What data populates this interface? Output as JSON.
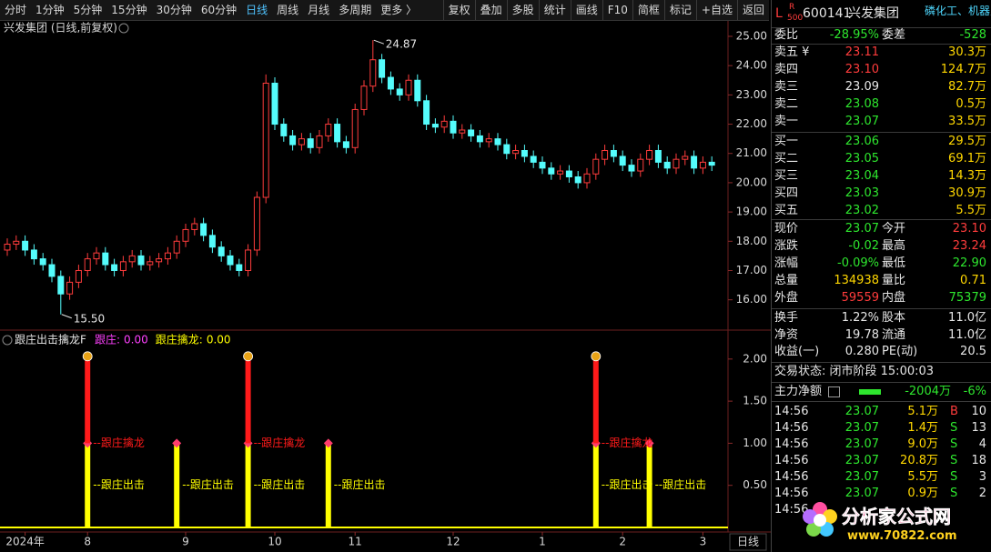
{
  "toolbar": {
    "left": [
      "分时",
      "1分钟",
      "5分钟",
      "15分钟",
      "30分钟",
      "60分钟",
      {
        "label": "日线",
        "selected": true
      },
      "周线",
      "月线",
      "多周期",
      "更多 〉"
    ],
    "right": [
      "复权",
      "叠加",
      "多股",
      "统计",
      "画线",
      "F10",
      "简框",
      "标记",
      "+自选",
      "返回"
    ]
  },
  "chart_data": [
    {
      "type": "candlestick",
      "title": "兴发集团 (日线,前复权)",
      "period": "日线",
      "up_color": "#ff3c3c",
      "down_color": "#54fcfc",
      "extreme_labels": {
        "high": "24.87",
        "low": "15.50"
      },
      "categories": [
        null,
        null,
        "2024年",
        null,
        null,
        null,
        null,
        null,
        null,
        "8",
        null,
        null,
        null,
        null,
        null,
        null,
        null,
        null,
        null,
        null,
        "9",
        null,
        null,
        null,
        null,
        null,
        null,
        null,
        null,
        null,
        "10",
        null,
        null,
        null,
        null,
        null,
        null,
        null,
        null,
        "11",
        null,
        null,
        null,
        null,
        null,
        null,
        null,
        null,
        null,
        null,
        "12",
        null,
        null,
        null,
        null,
        null,
        null,
        null,
        null,
        null,
        "1",
        null,
        null,
        null,
        null,
        null,
        null,
        null,
        null,
        "2",
        null,
        null,
        null,
        null,
        null,
        null,
        null,
        null,
        "3",
        null
      ],
      "open": [
        17.7,
        17.9,
        18.0,
        17.7,
        17.4,
        17.2,
        16.8,
        16.2,
        16.6,
        17.0,
        17.4,
        17.6,
        17.2,
        17.0,
        17.3,
        17.5,
        17.2,
        17.3,
        17.4,
        17.6,
        18.0,
        18.4,
        18.6,
        18.2,
        17.8,
        17.5,
        17.2,
        17.0,
        17.7,
        19.5,
        23.4,
        22.0,
        21.6,
        21.3,
        21.5,
        21.2,
        21.6,
        22.0,
        21.4,
        21.2,
        22.5,
        23.3,
        24.2,
        23.6,
        23.2,
        23.0,
        23.5,
        22.8,
        22.0,
        21.9,
        22.1,
        21.7,
        21.8,
        21.6,
        21.4,
        21.5,
        21.3,
        21.0,
        21.1,
        20.9,
        20.7,
        20.5,
        20.3,
        20.4,
        20.2,
        20.0,
        20.3,
        20.8,
        21.1,
        20.9,
        20.6,
        20.4,
        20.8,
        21.1,
        20.7,
        20.5,
        20.8,
        20.9,
        20.5,
        20.7
      ],
      "high": [
        18.1,
        18.2,
        18.2,
        17.9,
        17.6,
        17.4,
        17.0,
        16.8,
        17.2,
        17.6,
        17.8,
        17.8,
        17.4,
        17.5,
        17.7,
        17.7,
        17.5,
        17.6,
        17.8,
        18.2,
        18.6,
        18.8,
        18.8,
        18.4,
        18.0,
        17.7,
        17.4,
        17.9,
        19.7,
        23.7,
        23.6,
        22.2,
        21.8,
        21.7,
        21.7,
        21.8,
        22.2,
        22.2,
        21.6,
        22.7,
        23.5,
        24.87,
        24.4,
        23.8,
        23.4,
        23.7,
        23.7,
        23.0,
        22.2,
        22.3,
        22.3,
        22.0,
        22.0,
        21.8,
        21.7,
        21.7,
        21.5,
        21.3,
        21.3,
        21.1,
        20.9,
        20.7,
        20.6,
        20.6,
        20.4,
        20.5,
        21.0,
        21.3,
        21.3,
        21.1,
        20.8,
        21.0,
        21.3,
        21.3,
        20.9,
        21.0,
        21.1,
        21.1,
        20.9,
        20.9
      ],
      "low": [
        17.5,
        17.7,
        17.5,
        17.2,
        17.0,
        16.6,
        15.5,
        16.0,
        16.4,
        16.8,
        17.2,
        17.0,
        16.8,
        16.8,
        17.1,
        17.0,
        17.0,
        17.1,
        17.2,
        17.4,
        17.8,
        18.2,
        18.0,
        17.6,
        17.3,
        17.0,
        16.8,
        16.8,
        17.5,
        19.3,
        21.8,
        21.4,
        21.1,
        21.1,
        21.0,
        21.0,
        21.4,
        21.2,
        21.0,
        21.0,
        22.3,
        23.1,
        23.4,
        23.0,
        22.8,
        22.8,
        22.6,
        21.8,
        21.7,
        21.7,
        21.5,
        21.5,
        21.4,
        21.2,
        21.2,
        21.1,
        20.8,
        20.8,
        20.7,
        20.5,
        20.3,
        20.1,
        20.1,
        20.0,
        19.8,
        19.8,
        20.1,
        20.6,
        20.7,
        20.4,
        20.2,
        20.2,
        20.6,
        20.5,
        20.3,
        20.3,
        20.6,
        20.3,
        20.3,
        20.4
      ],
      "close": [
        17.9,
        18.0,
        17.7,
        17.4,
        17.2,
        16.8,
        16.2,
        16.6,
        17.0,
        17.4,
        17.6,
        17.2,
        17.0,
        17.3,
        17.5,
        17.2,
        17.3,
        17.4,
        17.6,
        18.0,
        18.4,
        18.6,
        18.2,
        17.8,
        17.5,
        17.2,
        17.0,
        17.7,
        19.5,
        23.4,
        22.0,
        21.6,
        21.3,
        21.5,
        21.2,
        21.6,
        22.0,
        21.4,
        21.2,
        22.5,
        23.3,
        24.2,
        23.6,
        23.2,
        23.0,
        23.5,
        22.8,
        22.0,
        21.9,
        22.1,
        21.7,
        21.8,
        21.6,
        21.4,
        21.5,
        21.3,
        21.0,
        21.1,
        20.9,
        20.7,
        20.5,
        20.3,
        20.4,
        20.2,
        20.0,
        20.3,
        20.8,
        21.1,
        20.9,
        20.6,
        20.4,
        20.8,
        21.1,
        20.7,
        20.5,
        20.8,
        20.9,
        20.5,
        20.7,
        20.6
      ],
      "ylim": [
        15.12,
        25.31
      ],
      "yticks": [
        {
          "value": 16,
          "label": "16.00"
        },
        {
          "value": 17,
          "label": "17.00"
        },
        {
          "value": 18,
          "label": "18.00"
        },
        {
          "value": 19,
          "label": "19.00"
        },
        {
          "value": 20,
          "label": "20.00"
        },
        {
          "value": 21,
          "label": "21.00"
        },
        {
          "value": 22,
          "label": "22.00"
        },
        {
          "value": 23,
          "label": "23.00"
        },
        {
          "value": 24,
          "label": "24.00"
        },
        {
          "value": 25,
          "label": "25.00"
        }
      ]
    },
    {
      "type": "bar",
      "stacked": true,
      "title": "跟庄出击擒龙F",
      "legend_values": [
        "0.00",
        "0.00"
      ],
      "series": [
        {
          "name": "跟庄:",
          "color": "#ffff00",
          "label_color": "#ff40ff",
          "signal_label": "--跟庄出击",
          "values": [
            0,
            0,
            0,
            0,
            0,
            0,
            0,
            0,
            0,
            1,
            0,
            0,
            0,
            0,
            0,
            0,
            0,
            0,
            0,
            1,
            0,
            0,
            0,
            0,
            0,
            0,
            0,
            1,
            0,
            0,
            0,
            0,
            0,
            0,
            0,
            0,
            1,
            0,
            0,
            0,
            0,
            0,
            0,
            0,
            0,
            0,
            0,
            0,
            0,
            0,
            0,
            0,
            0,
            0,
            0,
            0,
            0,
            0,
            0,
            0,
            0,
            0,
            0,
            0,
            0,
            0,
            1,
            0,
            0,
            0,
            0,
            0,
            1,
            0,
            0,
            0,
            0,
            0,
            0,
            0
          ]
        },
        {
          "name": "跟庄擒龙:",
          "color": "#ff1a1a",
          "label_color": "#ffff00",
          "signal_label": "--跟庄擒龙",
          "values": [
            0,
            0,
            0,
            0,
            0,
            0,
            0,
            0,
            0,
            1,
            0,
            0,
            0,
            0,
            0,
            0,
            0,
            0,
            0,
            0,
            0,
            0,
            0,
            0,
            0,
            0,
            0,
            1,
            0,
            0,
            0,
            0,
            0,
            0,
            0,
            0,
            0,
            0,
            0,
            0,
            0,
            0,
            0,
            0,
            0,
            0,
            0,
            0,
            0,
            0,
            0,
            0,
            0,
            0,
            0,
            0,
            0,
            0,
            0,
            0,
            0,
            0,
            0,
            0,
            0,
            0,
            1,
            0,
            0,
            0,
            0,
            0,
            0,
            0,
            0,
            0,
            0,
            0,
            0,
            0
          ]
        }
      ],
      "ylim": [
        0,
        2.16
      ],
      "yticks": [
        {
          "value": 0.5,
          "label": "0.50"
        },
        {
          "value": 1,
          "label": "1.00"
        },
        {
          "value": 1.5,
          "label": "1.50"
        },
        {
          "value": 2,
          "label": "2.00"
        }
      ]
    }
  ],
  "quote": {
    "badge": "L",
    "badge_sup": "R",
    "badge_sub": "500",
    "code": "600141",
    "name": "兴发集团",
    "concept": "磷化工、机器人",
    "ratio": [
      {
        "label": "委比",
        "value": "-28.95%",
        "color": "#2ee62e"
      },
      {
        "label": "委差",
        "value": "-528",
        "color": "#2ee62e"
      }
    ],
    "order_book": [
      {
        "label": "卖五 ¥",
        "price": "23.11",
        "volume": "30.3万",
        "color": "#ff3c3c"
      },
      {
        "label": "卖四",
        "price": "23.10",
        "volume": "124.7万",
        "color": "#ff3c3c"
      },
      {
        "label": "卖三",
        "price": "23.09",
        "volume": "82.7万",
        "color": "#e6e6e6"
      },
      {
        "label": "卖二",
        "price": "23.08",
        "volume": "0.5万",
        "color": "#2ee62e"
      },
      {
        "label": "卖一",
        "price": "23.07",
        "volume": "33.5万",
        "color": "#2ee62e"
      },
      {
        "label": "买一",
        "price": "23.06",
        "volume": "29.5万",
        "color": "#2ee62e"
      },
      {
        "label": "买二",
        "price": "23.05",
        "volume": "69.1万",
        "color": "#2ee62e"
      },
      {
        "label": "买三",
        "price": "23.04",
        "volume": "14.3万",
        "color": "#2ee62e"
      },
      {
        "label": "买四",
        "price": "23.03",
        "volume": "30.9万",
        "color": "#2ee62e"
      },
      {
        "label": "买五",
        "price": "23.02",
        "volume": "5.5万",
        "color": "#2ee62e"
      }
    ],
    "stats": [
      [
        {
          "label": "现价",
          "value": "23.07",
          "color": "#2ee62e"
        },
        {
          "label": "今开",
          "value": "23.10",
          "color": "#ff3c3c"
        }
      ],
      [
        {
          "label": "涨跌",
          "value": "-0.02",
          "color": "#2ee62e"
        },
        {
          "label": "最高",
          "value": "23.24",
          "color": "#ff3c3c"
        }
      ],
      [
        {
          "label": "涨幅",
          "value": "-0.09%",
          "color": "#2ee62e"
        },
        {
          "label": "最低",
          "value": "22.90",
          "color": "#2ee62e"
        }
      ],
      [
        {
          "label": "总量",
          "value": "134938",
          "color": "#ffd700"
        },
        {
          "label": "量比",
          "value": "0.71",
          "color": "#ffd700"
        }
      ],
      [
        {
          "label": "外盘",
          "value": "59559",
          "color": "#ff3c3c"
        },
        {
          "label": "内盘",
          "value": "75379",
          "color": "#2ee62e"
        }
      ],
      [
        {
          "label": "换手",
          "value": "1.22%",
          "color": "#e6e6e6"
        },
        {
          "label": "股本",
          "value": "11.0亿",
          "color": "#e6e6e6"
        }
      ],
      [
        {
          "label": "净资",
          "value": "19.78",
          "color": "#e6e6e6"
        },
        {
          "label": "流通",
          "value": "11.0亿",
          "color": "#e6e6e6"
        }
      ],
      [
        {
          "label": "收益(一)",
          "value": "0.280",
          "color": "#e6e6e6"
        },
        {
          "label": "PE(动)",
          "value": "20.5",
          "color": "#e6e6e6"
        }
      ]
    ],
    "trade_status": "交易状态: 闭市阶段 15:00:03",
    "main_flow": {
      "label": "主力净额",
      "value": "-2004万",
      "pct": "-6%"
    },
    "ticks": [
      {
        "time": "14:56",
        "price": "23.07",
        "volume": "5.1万",
        "side": "B",
        "count": "10",
        "side_color": "#ff3c3c"
      },
      {
        "time": "14:56",
        "price": "23.07",
        "volume": "1.4万",
        "side": "S",
        "count": "13",
        "side_color": "#2ee62e"
      },
      {
        "time": "14:56",
        "price": "23.07",
        "volume": "9.0万",
        "side": "S",
        "count": "4",
        "side_color": "#2ee62e"
      },
      {
        "time": "14:56",
        "price": "23.07",
        "volume": "20.8万",
        "side": "S",
        "count": "18",
        "side_color": "#2ee62e"
      },
      {
        "time": "14:56",
        "price": "23.07",
        "volume": "5.5万",
        "side": "S",
        "count": "3",
        "side_color": "#2ee62e"
      },
      {
        "time": "14:56",
        "price": "23.07",
        "volume": "0.9万",
        "side": "S",
        "count": "2",
        "side_color": "#2ee62e"
      },
      {
        "time": "14:56"
      }
    ]
  },
  "watermark": {
    "title": "分析家公式网",
    "url": "www.70822.com"
  }
}
